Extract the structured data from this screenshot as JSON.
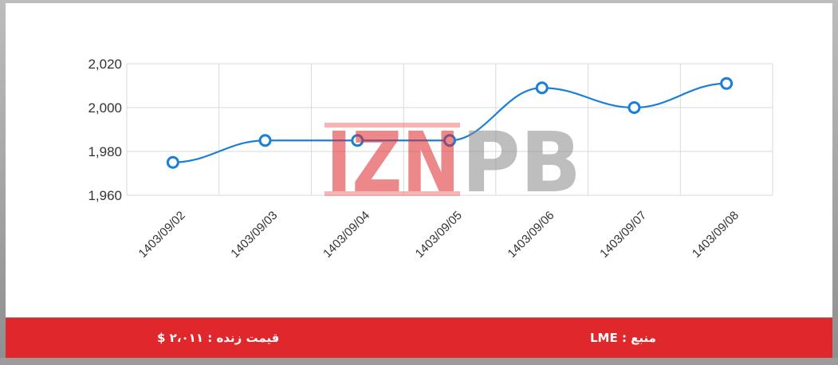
{
  "chart_data": {
    "type": "line",
    "x": [
      "1403/09/02",
      "1403/09/03",
      "1403/09/04",
      "1403/09/05",
      "1403/09/06",
      "1403/09/07",
      "1403/09/08"
    ],
    "series": [
      {
        "values": [
          1975,
          1985,
          1985,
          1985,
          2009,
          2000,
          2011
        ]
      }
    ],
    "yticks": [
      "1,960",
      "1,980",
      "2,000",
      "2,020"
    ],
    "ytick_values": [
      1960,
      1980,
      2000,
      2020
    ],
    "ylim": [
      1960,
      2020
    ],
    "grid": true,
    "line_color": "#1a7fd8",
    "title": "",
    "xlabel": "",
    "ylabel": ""
  },
  "watermark": {
    "text_left": "IZN",
    "text_right": "PB"
  },
  "footer": {
    "live_price": "قیمت زنده : ۲،۰۱۱ $",
    "source": "منبع : LME",
    "background": "#e0272b"
  }
}
